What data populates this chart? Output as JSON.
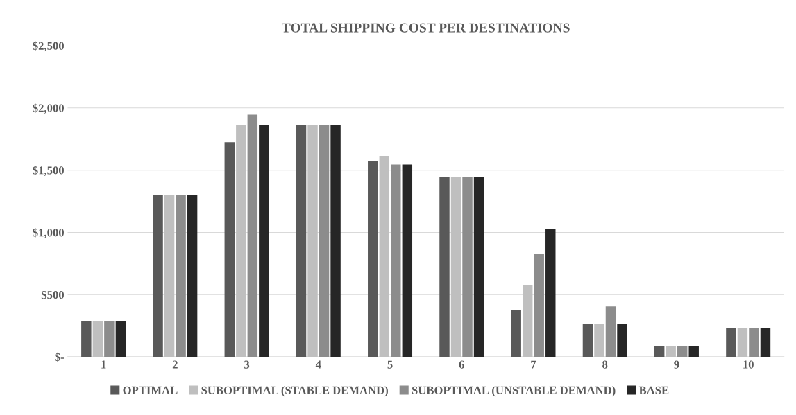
{
  "chart_data": {
    "type": "bar",
    "title": "TOTAL SHIPPING COST PER DESTINATIONS",
    "categories": [
      "1",
      "2",
      "3",
      "4",
      "5",
      "6",
      "7",
      "8",
      "9",
      "10"
    ],
    "series": [
      {
        "name": "OPTIMAL",
        "color": "#595959",
        "values": [
          285,
          1300,
          1725,
          1860,
          1570,
          1445,
          375,
          265,
          85,
          230
        ]
      },
      {
        "name": "SUBOPTIMAL (STABLE DEMAND)",
        "color": "#bfbfbf",
        "values": [
          285,
          1300,
          1860,
          1860,
          1615,
          1445,
          575,
          265,
          85,
          230
        ]
      },
      {
        "name": "SUBOPTIMAL (UNSTABLE DEMAND)",
        "color": "#8c8c8c",
        "values": [
          285,
          1300,
          1945,
          1860,
          1545,
          1445,
          830,
          405,
          85,
          230
        ]
      },
      {
        "name": "BASE",
        "color": "#262626",
        "values": [
          285,
          1300,
          1860,
          1860,
          1545,
          1445,
          1030,
          265,
          85,
          230
        ]
      }
    ],
    "ylim": [
      0,
      2500
    ],
    "yticks": [
      {
        "value": 0,
        "label": "$-"
      },
      {
        "value": 500,
        "label": "$500"
      },
      {
        "value": 1000,
        "label": "$1,000"
      },
      {
        "value": 1500,
        "label": "$1,500"
      },
      {
        "value": 2000,
        "label": "$2,000"
      },
      {
        "value": 2500,
        "label": "$2,500"
      }
    ],
    "grid": "y",
    "legend": "bottom"
  }
}
